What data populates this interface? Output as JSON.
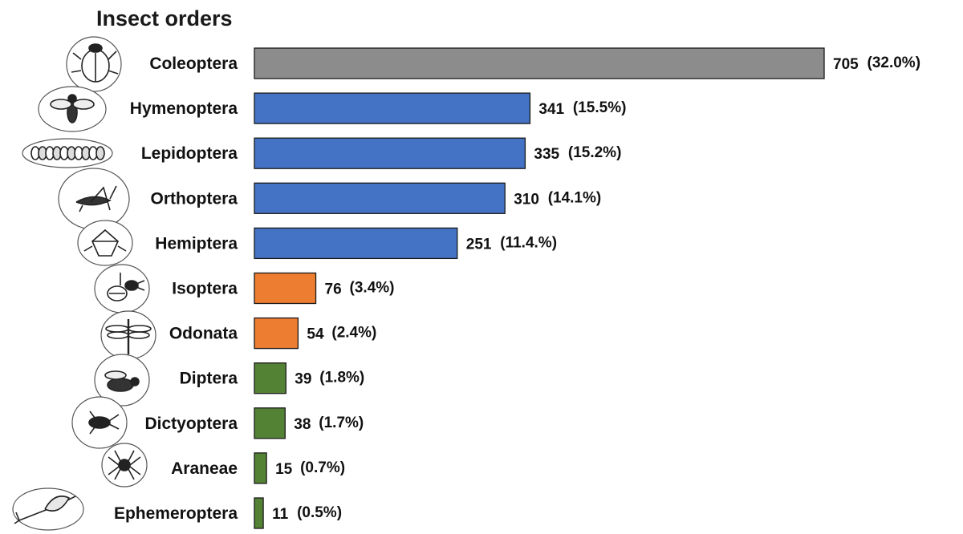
{
  "chart_data": {
    "type": "bar",
    "orientation": "horizontal",
    "title": "Insect orders",
    "xlabel": "",
    "ylabel": "",
    "grid": false,
    "xlim": [
      0,
      705
    ],
    "categories": [
      "Coleoptera",
      "Hymenoptera",
      "Lepidoptera",
      "Orthoptera",
      "Hemiptera",
      "Isoptera",
      "Odonata",
      "Diptera",
      "Dictyoptera",
      "Araneae",
      "Ephemeroptera"
    ],
    "values": [
      705,
      341,
      335,
      310,
      251,
      76,
      54,
      39,
      38,
      15,
      11
    ],
    "data_labels": [
      "705",
      "341",
      "335",
      "310",
      "251",
      "76",
      "54",
      "39",
      "38",
      "15",
      "11"
    ],
    "percent_labels": [
      "(32.0%)",
      "(15.5%)",
      "(15.2%)",
      "(14.1%)",
      "(11.4.%)",
      "(3.4%)",
      "(2.4%)",
      "(1.8%)",
      "(1.7%)",
      "(0.7%)",
      "(0.5%)"
    ],
    "bar_colors": [
      "#8c8c8c",
      "#4472c4",
      "#4472c4",
      "#4472c4",
      "#4472c4",
      "#ed7d31",
      "#ed7d31",
      "#548235",
      "#548235",
      "#548235",
      "#548235"
    ],
    "icons": [
      "beetle-icon",
      "bee-icon",
      "caterpillar-icon",
      "grasshopper-icon",
      "stink-bug-icon",
      "termite-icon",
      "dragonfly-icon",
      "fly-icon",
      "cockroach-icon",
      "spider-icon",
      "mayfly-icon"
    ]
  }
}
